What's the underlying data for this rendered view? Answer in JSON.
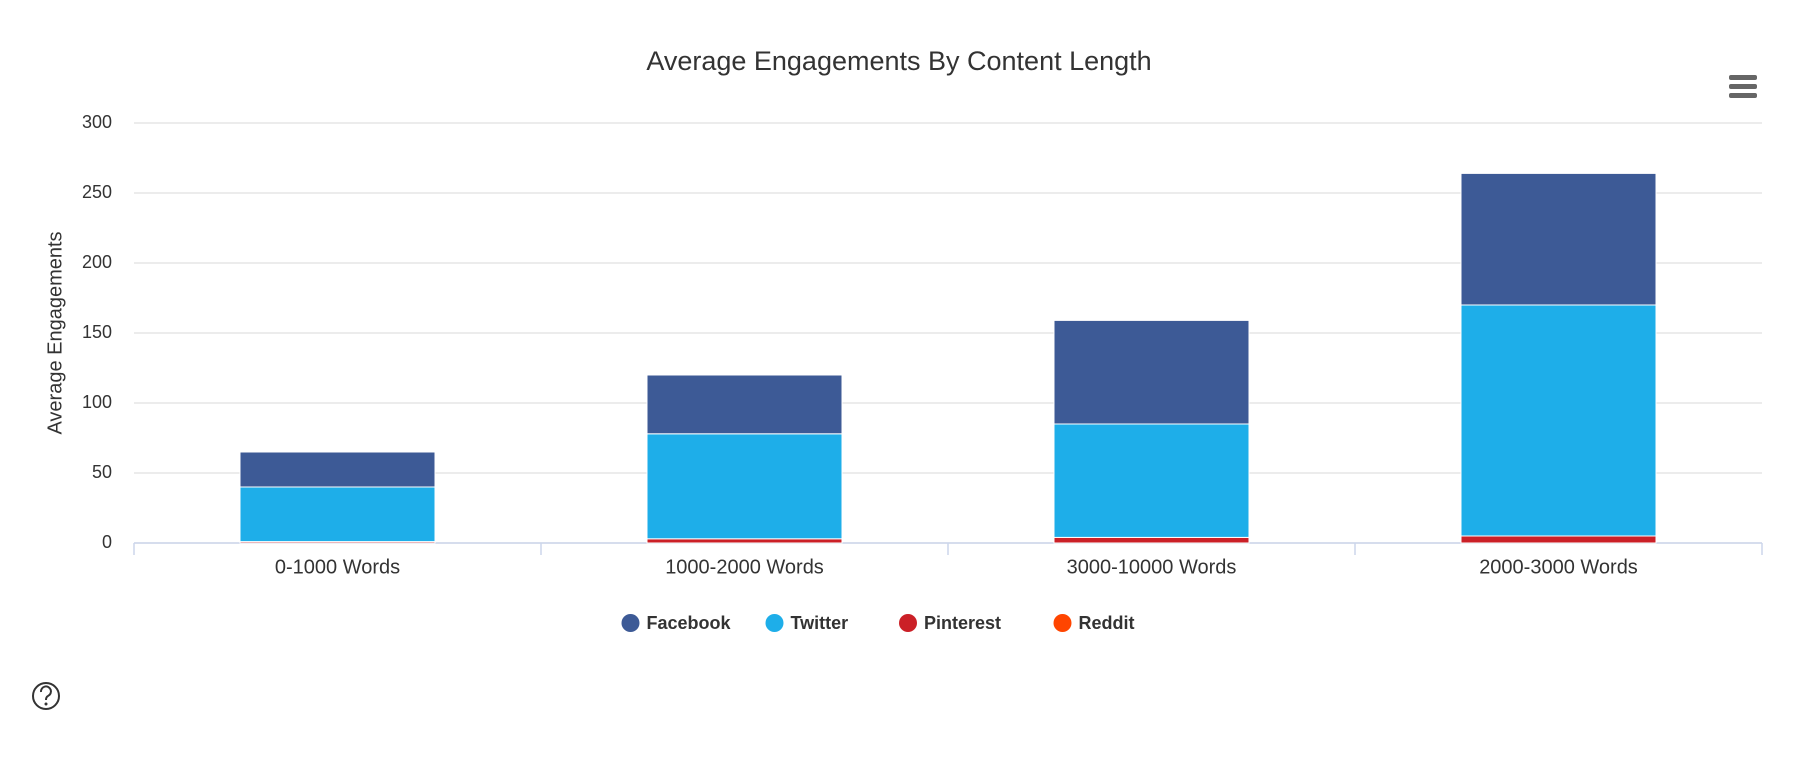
{
  "chart_data": {
    "type": "bar",
    "stacked": true,
    "title": "Average Engagements By Content Length",
    "y_label": "Average Engagements",
    "categories": [
      "0-1000 Words",
      "1000-2000 Words",
      "3000-10000 Words",
      "2000-3000 Words"
    ],
    "series": [
      {
        "name": "Facebook",
        "color": "#3d5a96",
        "values": [
          25,
          42,
          74,
          94
        ]
      },
      {
        "name": "Twitter",
        "color": "#1eaee9",
        "values": [
          39,
          75,
          81,
          165
        ]
      },
      {
        "name": "Pinterest",
        "color": "#cb2027",
        "values": [
          1,
          3,
          4,
          5
        ]
      },
      {
        "name": "Reddit",
        "color": "#ff4500",
        "values": [
          0,
          0,
          0,
          0
        ]
      }
    ],
    "ylim": [
      0,
      300
    ],
    "yticks": [
      0,
      50,
      100,
      150,
      200,
      250,
      300
    ],
    "grid": true,
    "legend": "bottom"
  }
}
